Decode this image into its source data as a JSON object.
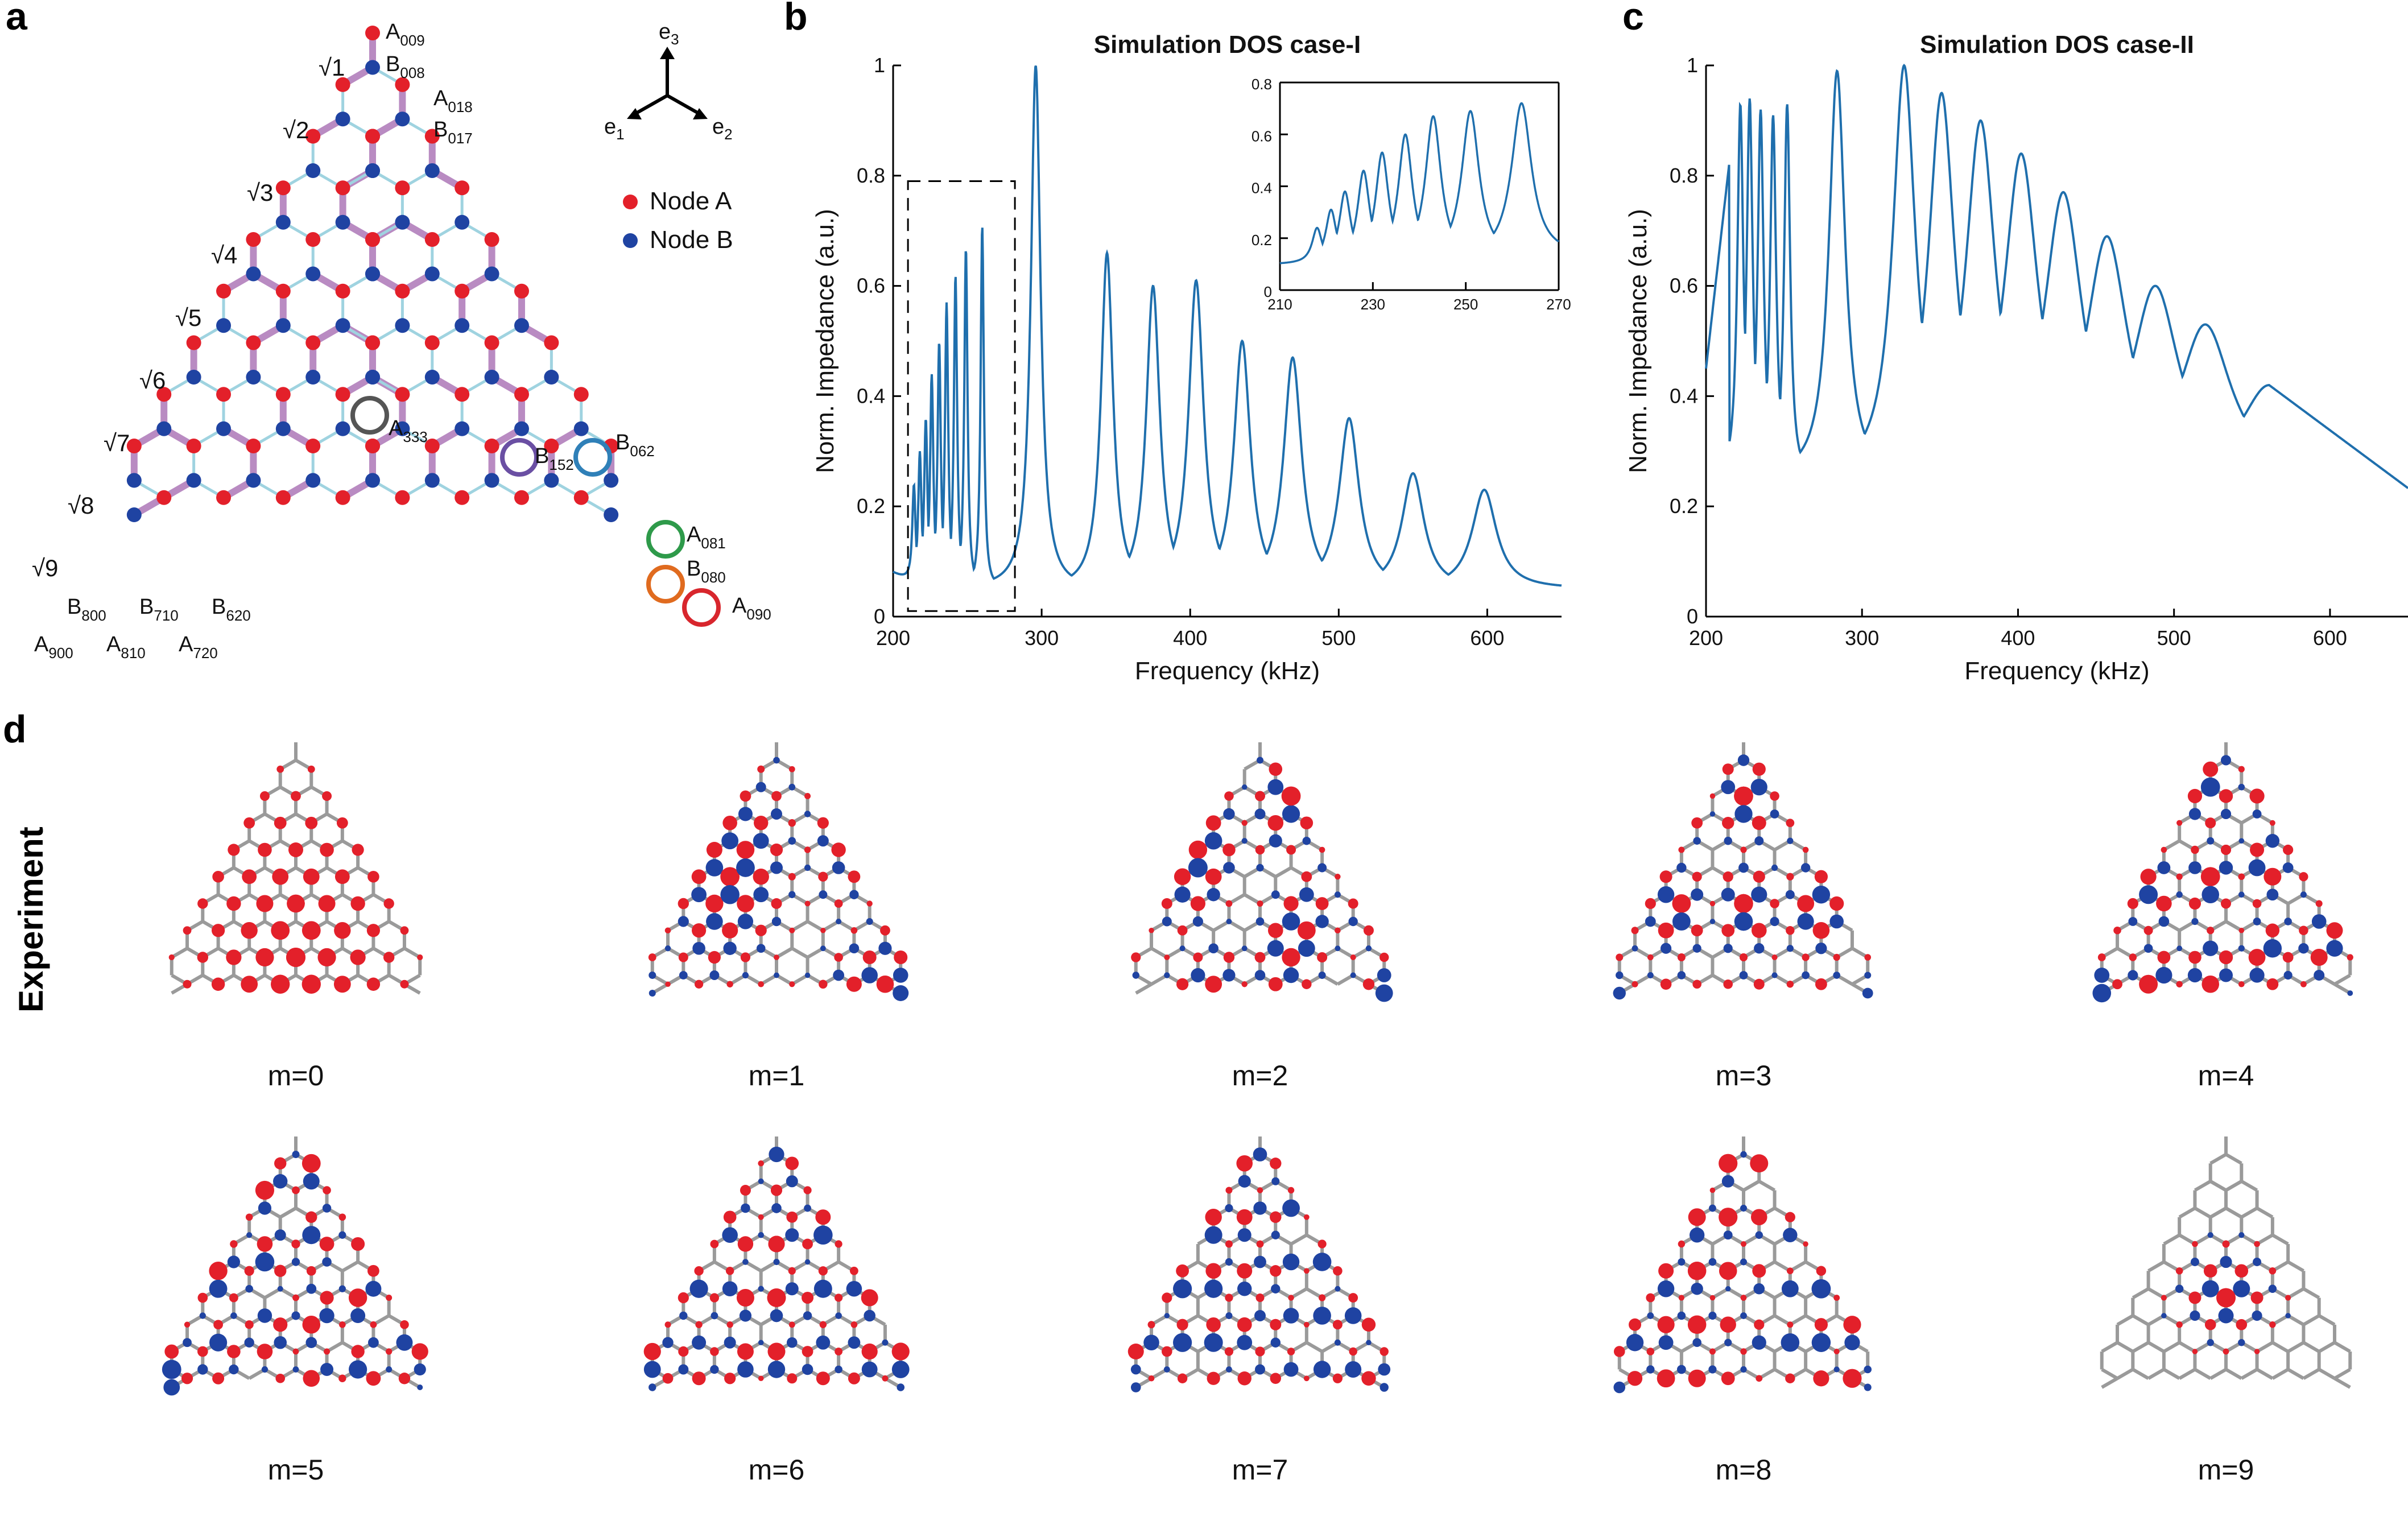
{
  "panel_a": {
    "letter": "a",
    "sqrt_labels": [
      "√1",
      "√2",
      "√3",
      "√4",
      "√5",
      "√6",
      "√7",
      "√8",
      "√9"
    ],
    "node_labels": [
      {
        "base": "A",
        "sub": "009"
      },
      {
        "base": "B",
        "sub": "008"
      },
      {
        "base": "A",
        "sub": "018"
      },
      {
        "base": "B",
        "sub": "017"
      },
      {
        "base": "A",
        "sub": "333"
      },
      {
        "base": "B",
        "sub": "152"
      },
      {
        "base": "B",
        "sub": "062"
      },
      {
        "base": "A",
        "sub": "081"
      },
      {
        "base": "B",
        "sub": "080"
      },
      {
        "base": "A",
        "sub": "090"
      },
      {
        "base": "B",
        "sub": "800"
      },
      {
        "base": "B",
        "sub": "710"
      },
      {
        "base": "B",
        "sub": "620"
      },
      {
        "base": "A",
        "sub": "900"
      },
      {
        "base": "A",
        "sub": "810"
      },
      {
        "base": "A",
        "sub": "720"
      }
    ],
    "axes": {
      "e1": "e",
      "e1_sub": "1",
      "e2": "e",
      "e2_sub": "2",
      "e3": "e",
      "e3_sub": "3"
    },
    "legend": {
      "node_a": "Node A",
      "node_b": "Node B"
    },
    "colors": {
      "node_a": "#e3202a",
      "node_b": "#1f43a2",
      "weak_bond": "#9fd3e0",
      "strong_bond": "#b98bc2"
    },
    "circle_colors": [
      "#555555",
      "#6a4fa3",
      "#2f80b8",
      "#2e9a4a",
      "#e06b1f",
      "#d8262d"
    ]
  },
  "panel_b_letter": "b",
  "panel_c_letter": "c",
  "panel_d_letter": "d",
  "experiment_label": "Experiment",
  "mode_labels": [
    "m=0",
    "m=1",
    "m=2",
    "m=3",
    "m=4",
    "m=5",
    "m=6",
    "m=7",
    "m=8",
    "m=9"
  ],
  "chart_data": [
    {
      "type": "line",
      "title": "Simulation DOS case-I",
      "xlabel": "Frequency (kHz)",
      "ylabel": "Norm. Impedance (a.u.)",
      "xlim": [
        200,
        650
      ],
      "ylim": [
        0,
        1
      ],
      "xticks": [
        200,
        300,
        400,
        500,
        600
      ],
      "yticks": [
        0,
        0.2,
        0.4,
        0.6,
        0.8,
        1
      ],
      "ytick_labels": [
        "0",
        "0.2",
        "0.4",
        "0.6",
        "0.8",
        "1"
      ],
      "color": "#1f6fad",
      "peaks": [
        {
          "f": 214,
          "h": 0.24
        },
        {
          "f": 218,
          "h": 0.3
        },
        {
          "f": 222,
          "h": 0.36
        },
        {
          "f": 226,
          "h": 0.44
        },
        {
          "f": 231,
          "h": 0.5
        },
        {
          "f": 236,
          "h": 0.57
        },
        {
          "f": 242,
          "h": 0.62
        },
        {
          "f": 249,
          "h": 0.67
        },
        {
          "f": 260,
          "h": 0.71
        },
        {
          "f": 296,
          "h": 1.0
        },
        {
          "f": 344,
          "h": 0.66
        },
        {
          "f": 375,
          "h": 0.6
        },
        {
          "f": 404,
          "h": 0.61
        },
        {
          "f": 435,
          "h": 0.5
        },
        {
          "f": 469,
          "h": 0.47
        },
        {
          "f": 507,
          "h": 0.36
        },
        {
          "f": 550,
          "h": 0.26
        },
        {
          "f": 598,
          "h": 0.23
        }
      ],
      "dashed_box": {
        "x": [
          210,
          282
        ],
        "y": [
          0.01,
          0.79
        ]
      },
      "inset": {
        "xlim": [
          210,
          270
        ],
        "ylim": [
          0,
          0.8
        ],
        "xticks": [
          210,
          230,
          250,
          270
        ],
        "yticks": [
          0,
          0.2,
          0.4,
          0.6,
          0.8
        ],
        "ytick_labels": [
          "0",
          "0.2",
          "0.4",
          "0.6",
          "0.8"
        ],
        "peaks": [
          {
            "f": 218,
            "h": 0.24
          },
          {
            "f": 221,
            "h": 0.31
          },
          {
            "f": 224,
            "h": 0.38
          },
          {
            "f": 228,
            "h": 0.46
          },
          {
            "f": 232,
            "h": 0.53
          },
          {
            "f": 237,
            "h": 0.6
          },
          {
            "f": 243,
            "h": 0.67
          },
          {
            "f": 251,
            "h": 0.69
          },
          {
            "f": 262,
            "h": 0.72
          }
        ]
      }
    },
    {
      "type": "line",
      "title": "Simulation DOS case-II",
      "xlabel": "Frequency (kHz)",
      "ylabel": "Norm. Impedance (a.u.)",
      "xlim": [
        200,
        650
      ],
      "ylim": [
        0,
        1
      ],
      "xticks": [
        200,
        300,
        400,
        500,
        600
      ],
      "yticks": [
        0,
        0.2,
        0.4,
        0.6,
        0.8,
        1
      ],
      "ytick_labels": [
        "0",
        "0.2",
        "0.4",
        "0.6",
        "0.8",
        "1"
      ],
      "color": "#1f6fad",
      "peaks": [
        {
          "f": 222,
          "h": 0.93
        },
        {
          "f": 228,
          "h": 0.94
        },
        {
          "f": 235,
          "h": 0.92
        },
        {
          "f": 243,
          "h": 0.91
        },
        {
          "f": 252,
          "h": 0.93
        },
        {
          "f": 284,
          "h": 0.99
        },
        {
          "f": 327,
          "h": 1.0
        },
        {
          "f": 351,
          "h": 0.95
        },
        {
          "f": 376,
          "h": 0.9
        },
        {
          "f": 402,
          "h": 0.84
        },
        {
          "f": 429,
          "h": 0.77
        },
        {
          "f": 457,
          "h": 0.69
        },
        {
          "f": 488,
          "h": 0.6
        },
        {
          "f": 520,
          "h": 0.53
        },
        {
          "f": 561,
          "h": 0.42
        }
      ],
      "end_value": 0.23
    }
  ]
}
